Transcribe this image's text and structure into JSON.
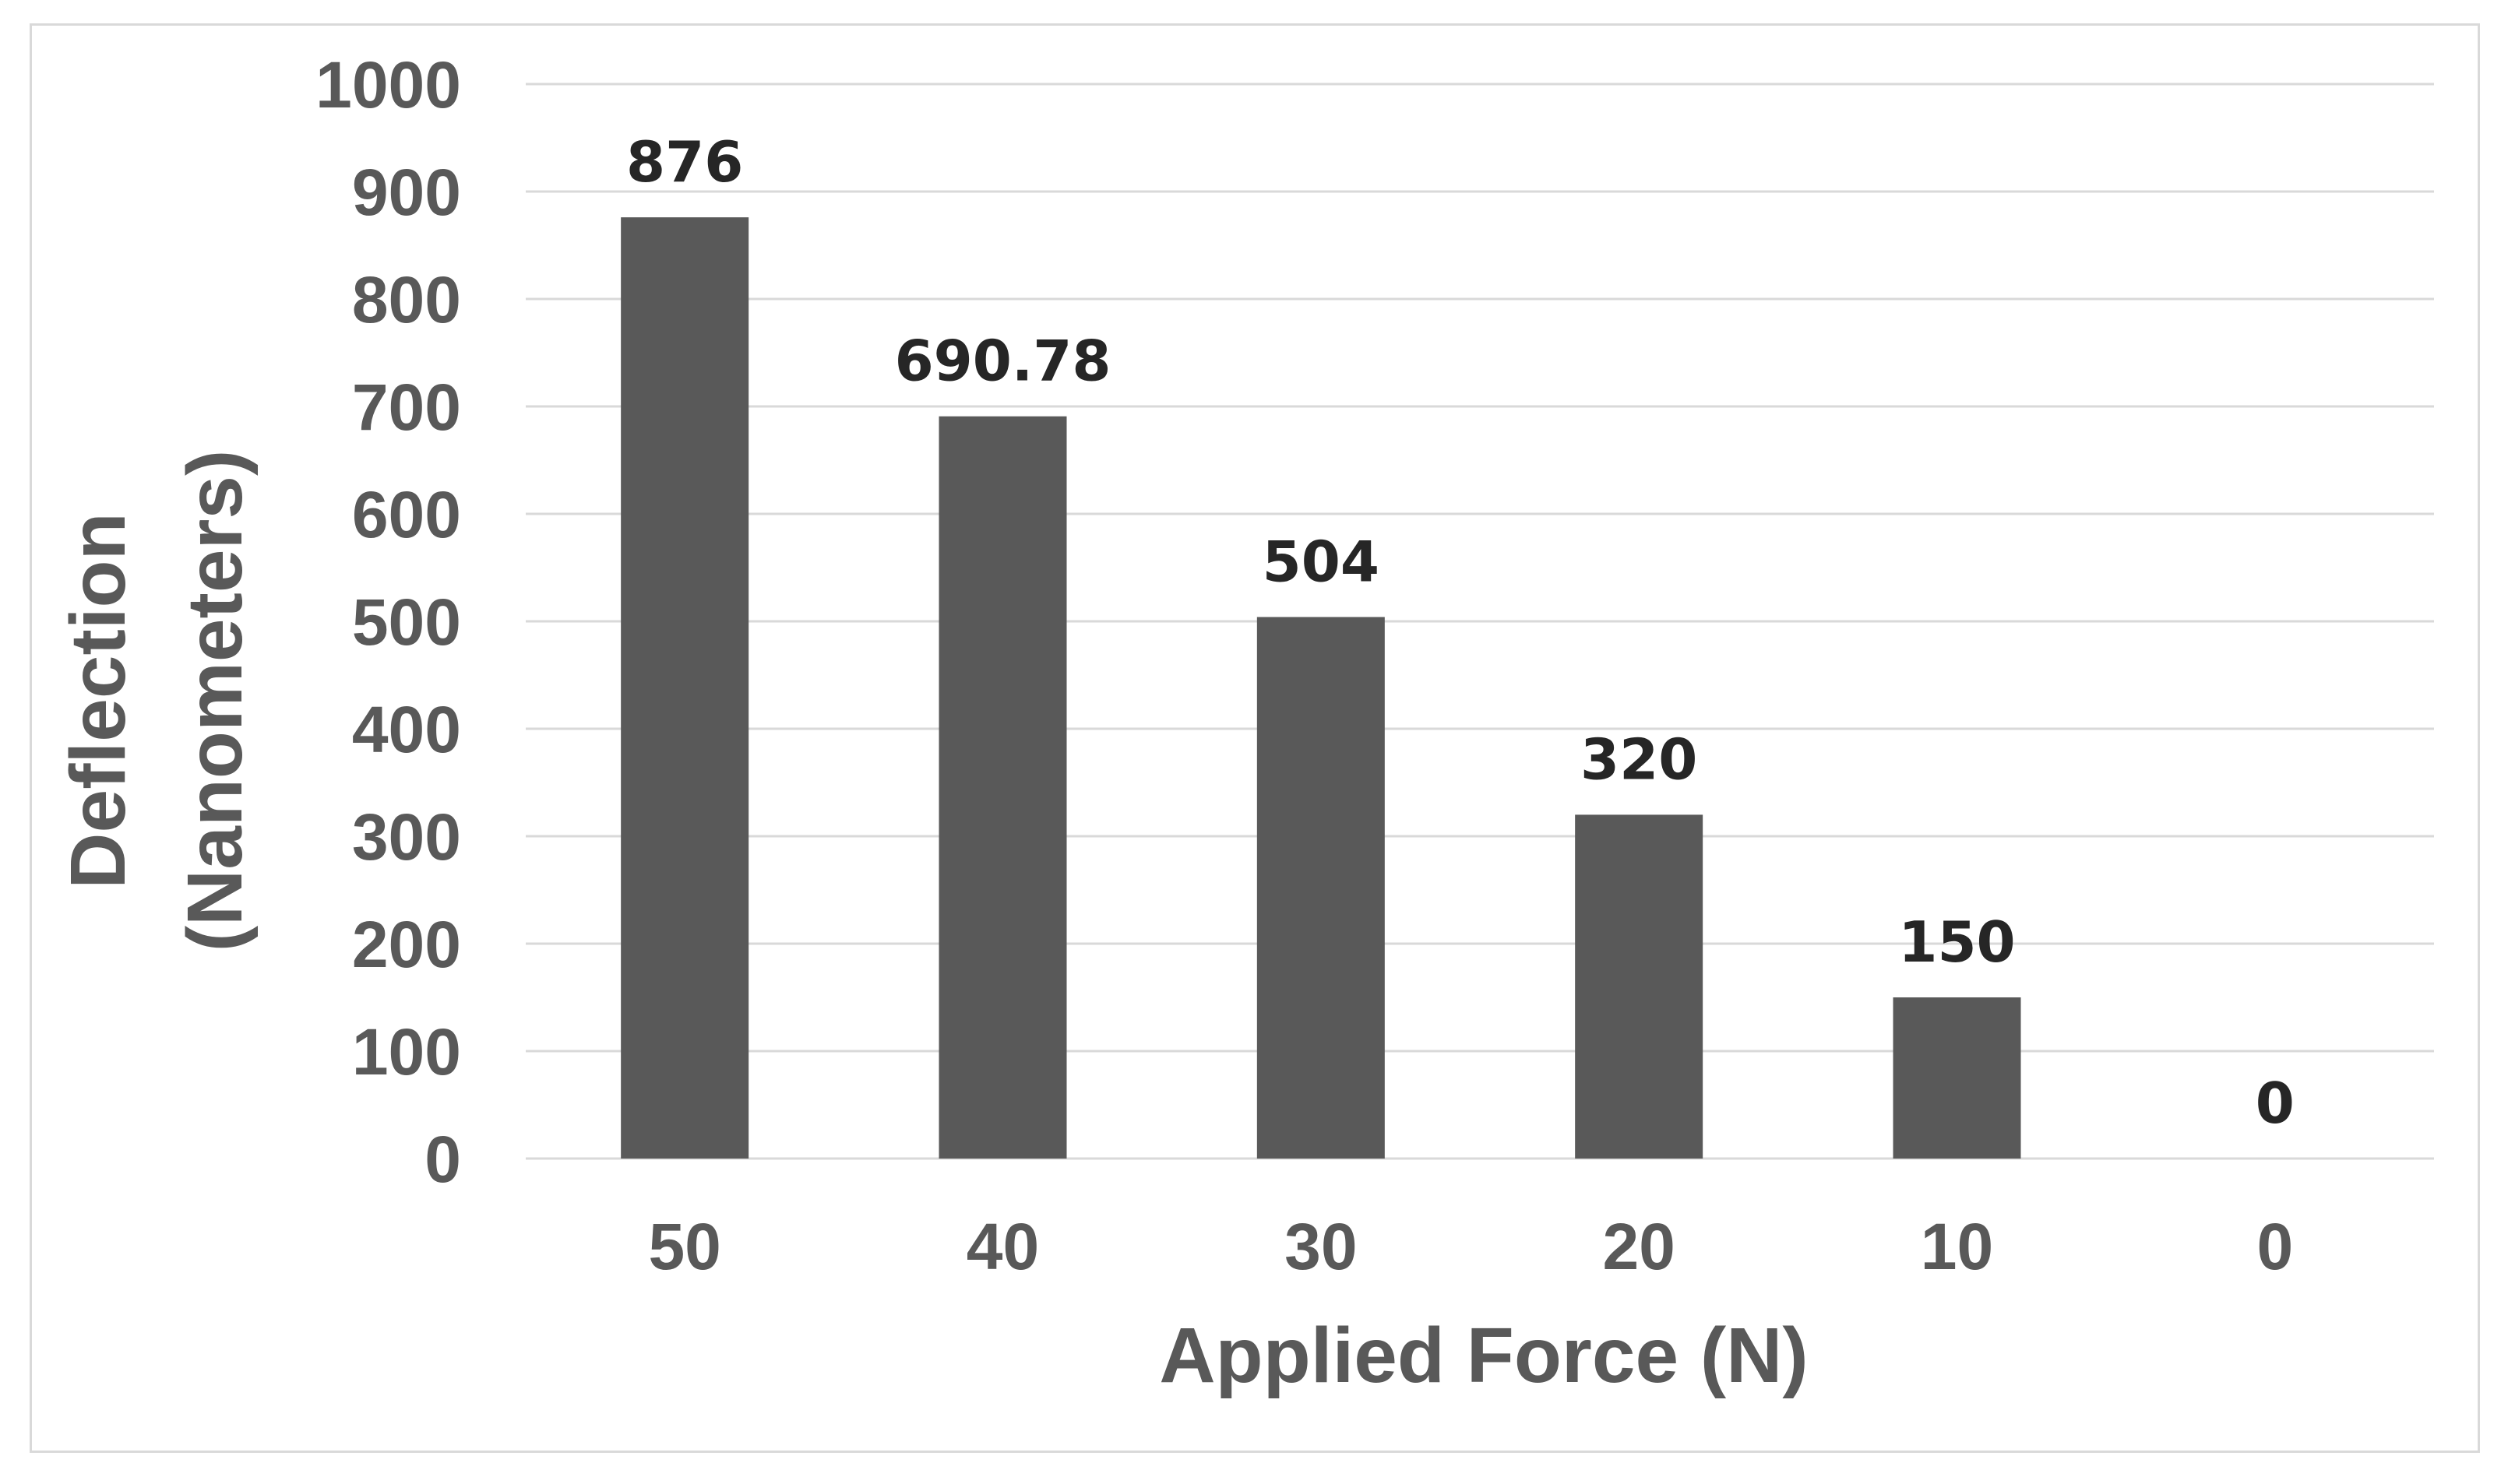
{
  "chart_data": {
    "type": "bar",
    "categories": [
      "50",
      "40",
      "30",
      "20",
      "10",
      "0"
    ],
    "values": [
      876,
      690.78,
      504,
      320,
      150,
      0
    ],
    "data_labels": [
      "876",
      "690.78",
      "504",
      "320",
      "150",
      "0"
    ],
    "xlabel": "Applied Force (N)",
    "ylabel_line1": "Deflection",
    "ylabel_line2": "(Nanometers)",
    "ylim": [
      0,
      1000
    ],
    "yticks": [
      "0",
      "100",
      "200",
      "300",
      "400",
      "500",
      "600",
      "700",
      "800",
      "900",
      "1000"
    ],
    "grid": true,
    "legend": "none",
    "bar_color": "#595959",
    "grid_color": "#d9d9d9"
  }
}
